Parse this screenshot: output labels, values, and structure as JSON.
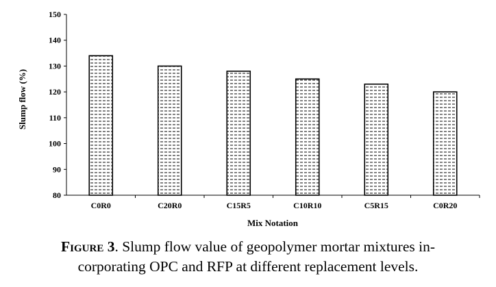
{
  "chart_data": {
    "type": "bar",
    "categories": [
      "C0R0",
      "C20R0",
      "C15R5",
      "C10R10",
      "C5R15",
      "C0R20"
    ],
    "values": [
      134,
      130,
      128,
      125,
      123,
      120
    ],
    "xlabel": "Mix Notation",
    "ylabel": "Slump flow  (%)",
    "ylim": [
      80,
      150
    ],
    "yticks": [
      80,
      90,
      100,
      110,
      120,
      130,
      140,
      150
    ],
    "grid": false,
    "legend": "none",
    "bar_fill": "dashed-hatch",
    "colors": {
      "bar_outline": "#000000",
      "hatch": "#000000",
      "background": "#ffffff"
    }
  },
  "caption": {
    "label": "Figure 3",
    "text_line1": ". Slump flow value of geopolymer mortar mixtures in-",
    "text_line2": "corporating OPC and RFP at different replacement levels."
  }
}
